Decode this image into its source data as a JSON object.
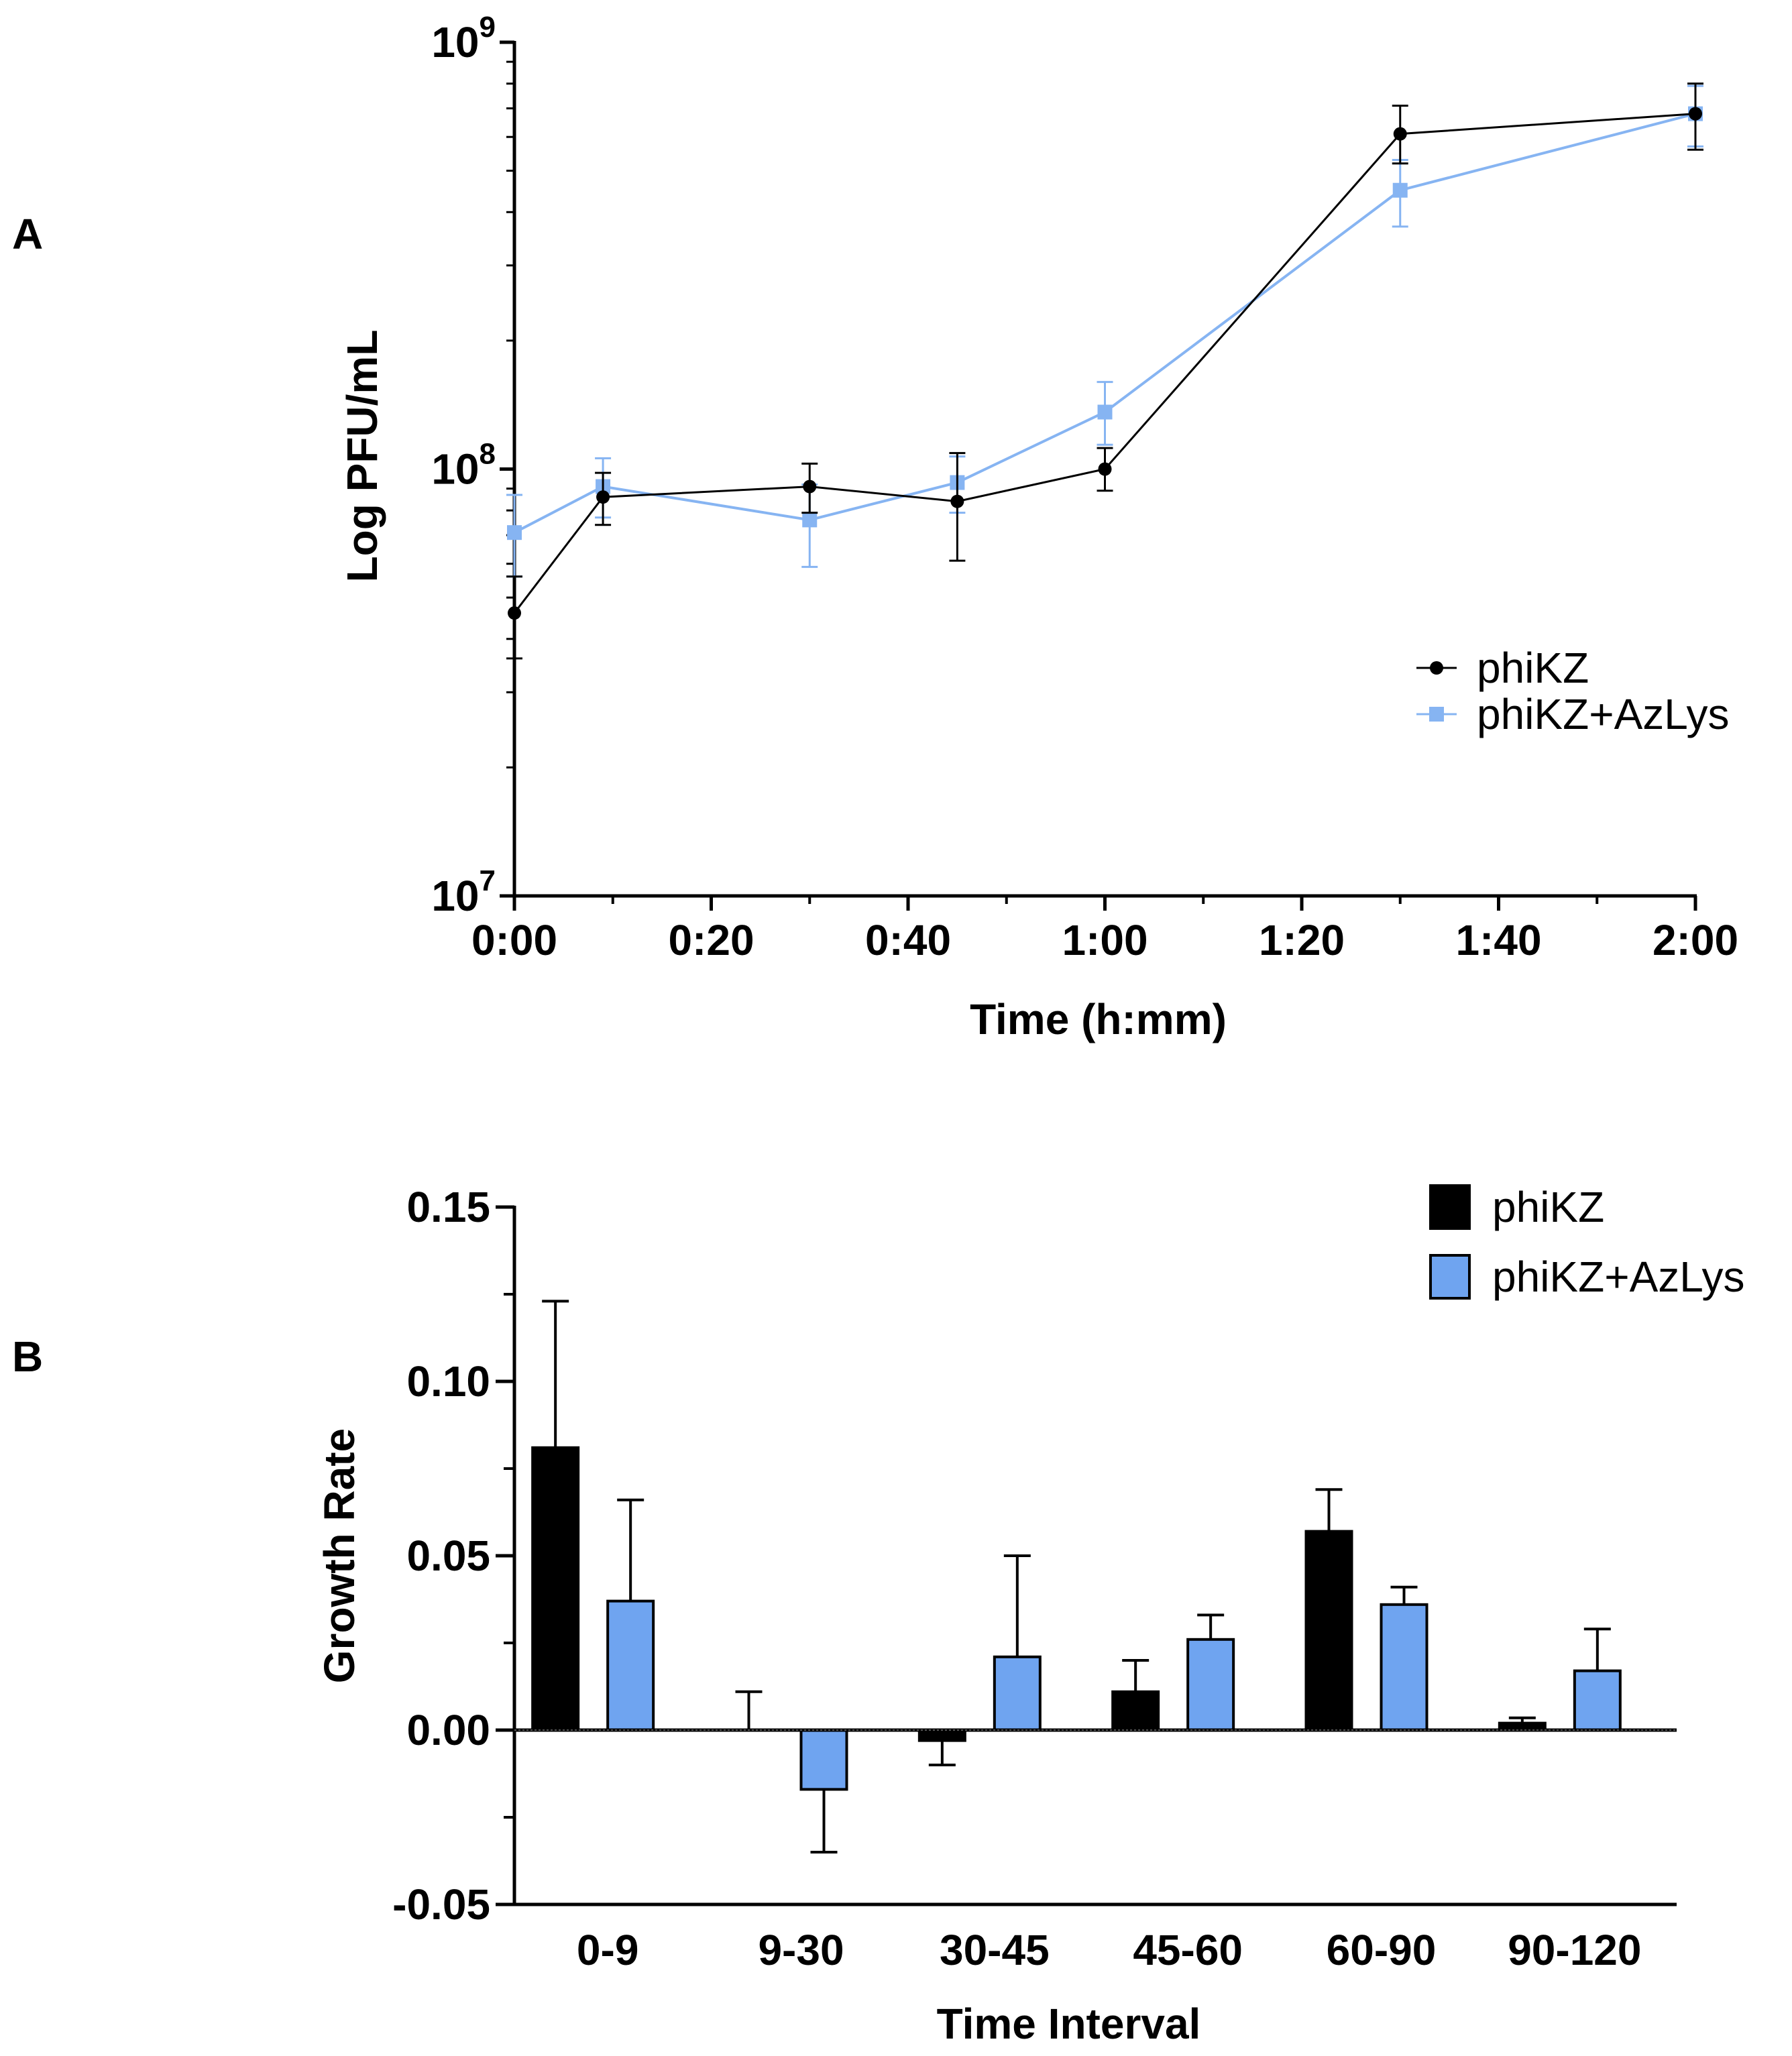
{
  "panel_labels": [
    "A",
    "B"
  ],
  "colors": {
    "series1": "#000000",
    "series2": "#86B4F2",
    "series2_bar": "#6FA4F0"
  },
  "chart_data": [
    {
      "type": "line",
      "panel": "A",
      "xlabel": "Time (h:mm)",
      "ylabel": "Log PFU/mL",
      "yscale": "log",
      "ylim": [
        10000000,
        1000000000
      ],
      "xlim": [
        0,
        120
      ],
      "x_ticks": [
        0,
        20,
        40,
        60,
        80,
        100,
        120
      ],
      "x_tick_labels": [
        "0:00",
        "0:20",
        "0:40",
        "1:00",
        "1:20",
        "1:40",
        "2:00"
      ],
      "y_tick_labels": [
        {
          "base": "10",
          "exp": "7",
          "value": 10000000
        },
        {
          "base": "10",
          "exp": "8",
          "value": 100000000
        },
        {
          "base": "10",
          "exp": "9",
          "value": 1000000000
        }
      ],
      "legend": [
        "phiKZ",
        "phiKZ+AzLys"
      ],
      "legend_position": "right",
      "series": [
        {
          "name": "phiKZ",
          "color": "#000000",
          "marker": "circle",
          "x": [
            0,
            9,
            30,
            45,
            60,
            90,
            120
          ],
          "y": [
            46000000,
            86000000,
            91000000,
            84000000,
            100000000,
            610000000,
            680000000
          ],
          "err_low": [
            36000000,
            74000000,
            79000000,
            61000000,
            89000000,
            520000000,
            560000000
          ],
          "err_high": [
            56000000,
            98000000,
            103000000,
            109000000,
            112000000,
            710000000,
            800000000
          ]
        },
        {
          "name": "phiKZ+AzLys",
          "color": "#86B4F2",
          "marker": "square",
          "x": [
            0,
            9,
            30,
            45,
            60,
            90,
            120
          ],
          "y": [
            71000000,
            91000000,
            76000000,
            93000000,
            136000000,
            450000000,
            680000000
          ],
          "err_low": [
            56000000,
            77000000,
            59000000,
            79000000,
            114000000,
            370000000,
            570000000
          ],
          "err_high": [
            87000000,
            106000000,
            92000000,
            107000000,
            160000000,
            530000000,
            790000000
          ]
        }
      ]
    },
    {
      "type": "bar",
      "panel": "B",
      "xlabel": "Time Interval",
      "ylabel": "Growth Rate",
      "ylim": [
        -0.05,
        0.15
      ],
      "y_ticks": [
        -0.05,
        0.0,
        0.05,
        0.1,
        0.15
      ],
      "y_tick_labels": [
        "-0.05",
        "0.00",
        "0.05",
        "0.10",
        "0.15"
      ],
      "categories": [
        "0-9",
        "9-30",
        "30-45",
        "45-60",
        "60-90",
        "90-120"
      ],
      "legend": [
        "phiKZ",
        "phiKZ+AzLys"
      ],
      "legend_position": "top-right",
      "series": [
        {
          "name": "phiKZ",
          "color": "#000000",
          "values": [
            0.081,
            0.0,
            -0.003,
            0.011,
            0.057,
            0.002
          ],
          "err": [
            0.042,
            0.011,
            0.007,
            0.009,
            0.012,
            0.0015
          ]
        },
        {
          "name": "phiKZ+AzLys",
          "color": "#6FA4F0",
          "values": [
            0.037,
            -0.017,
            0.021,
            0.026,
            0.036,
            0.017
          ],
          "err": [
            0.029,
            0.018,
            0.029,
            0.007,
            0.005,
            0.012
          ]
        }
      ]
    }
  ]
}
